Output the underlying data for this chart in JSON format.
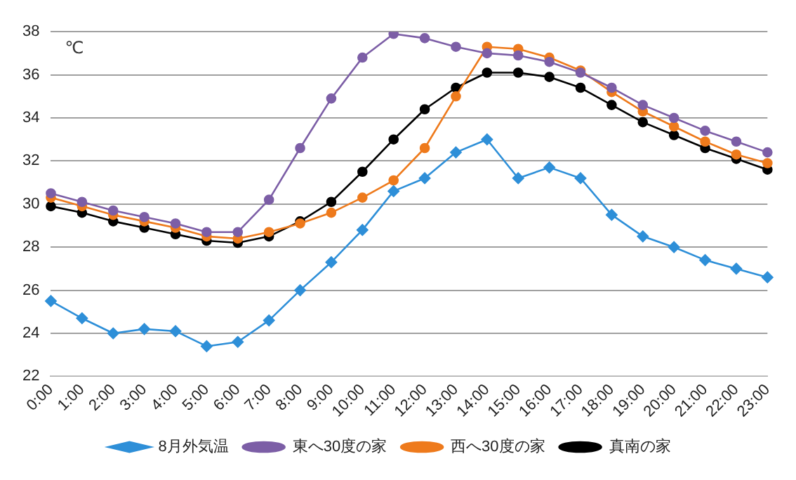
{
  "chart_data": {
    "type": "line",
    "categories": [
      "0:00",
      "1:00",
      "2:00",
      "3:00",
      "4:00",
      "5:00",
      "6:00",
      "7:00",
      "8:00",
      "9:00",
      "10:00",
      "11:00",
      "12:00",
      "13:00",
      "14:00",
      "15:00",
      "16:00",
      "17:00",
      "18:00",
      "19:00",
      "20:00",
      "21:00",
      "22:00",
      "23:00"
    ],
    "series": [
      {
        "name": "8月外気温",
        "color": "#2e8fd8",
        "marker": "diamond",
        "values": [
          25.5,
          24.7,
          24.0,
          24.2,
          24.1,
          23.4,
          23.6,
          24.6,
          26.0,
          27.3,
          28.8,
          30.6,
          31.2,
          32.4,
          33.0,
          31.2,
          31.7,
          31.2,
          29.5,
          28.5,
          28.0,
          27.4,
          27.0,
          26.6
        ]
      },
      {
        "name": "東へ30度の家",
        "color": "#7c5ea6",
        "marker": "circle",
        "values": [
          30.5,
          30.1,
          29.7,
          29.4,
          29.1,
          28.7,
          28.7,
          30.2,
          32.6,
          34.9,
          36.8,
          37.9,
          37.7,
          37.3,
          37.0,
          36.9,
          36.6,
          36.1,
          35.4,
          34.6,
          34.0,
          33.4,
          32.9,
          32.4
        ]
      },
      {
        "name": "西へ30度の家",
        "color": "#ee7a1c",
        "marker": "circle",
        "values": [
          30.3,
          29.9,
          29.5,
          29.2,
          28.9,
          28.5,
          28.4,
          28.7,
          29.1,
          29.6,
          30.3,
          31.1,
          32.6,
          35.0,
          37.3,
          37.2,
          36.8,
          36.2,
          35.2,
          34.3,
          33.6,
          32.9,
          32.3,
          31.9
        ]
      },
      {
        "name": "真南の家",
        "color": "#000000",
        "marker": "circle",
        "values": [
          29.9,
          29.6,
          29.2,
          28.9,
          28.6,
          28.3,
          28.2,
          28.5,
          29.2,
          30.1,
          31.5,
          33.0,
          34.4,
          35.4,
          36.1,
          36.1,
          35.9,
          35.4,
          34.6,
          33.8,
          33.2,
          32.6,
          32.1,
          31.6
        ]
      }
    ],
    "ylim": [
      22,
      38
    ],
    "yticks": [
      22,
      24,
      26,
      28,
      30,
      32,
      34,
      36,
      38
    ],
    "grid": "y",
    "legend": "bottom",
    "line_style": "solid",
    "annotations": [
      "℃"
    ]
  }
}
